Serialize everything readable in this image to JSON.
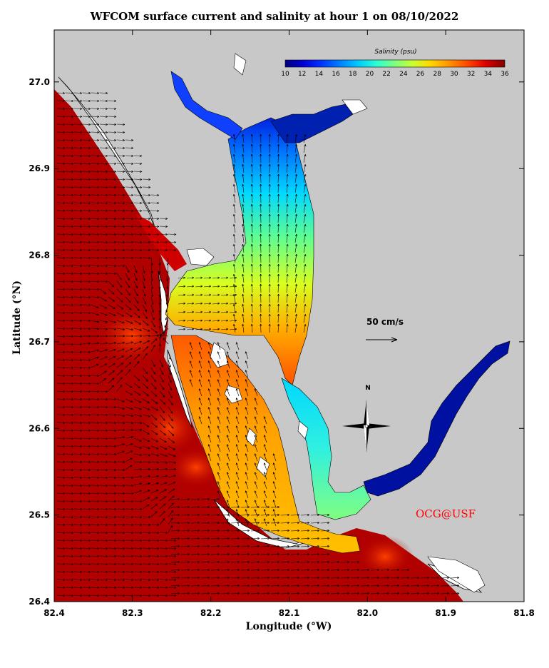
{
  "title": "WFCOM surface current and salinity at hour 1 on 08/10/2022",
  "xlabel": "Longitude (°W)",
  "ylabel": "Latitude (°N)",
  "colorbar": {
    "title": "Salinity (psu)",
    "ticks": [
      "10",
      "12",
      "14",
      "16",
      "18",
      "20",
      "22",
      "24",
      "26",
      "28",
      "30",
      "32",
      "34",
      "36"
    ],
    "colors": [
      "#00007f",
      "#0000d0",
      "#0030ff",
      "#0080ff",
      "#00c8ff",
      "#30ffd0",
      "#80ff80",
      "#c8ff30",
      "#ffd800",
      "#ff9000",
      "#ff4800",
      "#e00000",
      "#a00000",
      "#7f0000"
    ]
  },
  "scale_label": "50 cm/s",
  "compass_label": "N",
  "credit": "OCG@USF",
  "colors": {
    "land": "#c8c8c8",
    "gulf": "#b00000",
    "credit": "#ff0000"
  },
  "chart_data": {
    "type": "map",
    "x_ticks": [
      "82.4",
      "82.3",
      "82.2",
      "82.1",
      "82.0",
      "81.9",
      "81.8"
    ],
    "y_ticks": [
      "27.0",
      "26.9",
      "26.8",
      "26.7",
      "26.6",
      "26.5",
      "26.4"
    ],
    "xlim": [
      82.4,
      81.8
    ],
    "ylim": [
      26.4,
      27.06
    ],
    "salinity_range": [
      10,
      36
    ]
  }
}
